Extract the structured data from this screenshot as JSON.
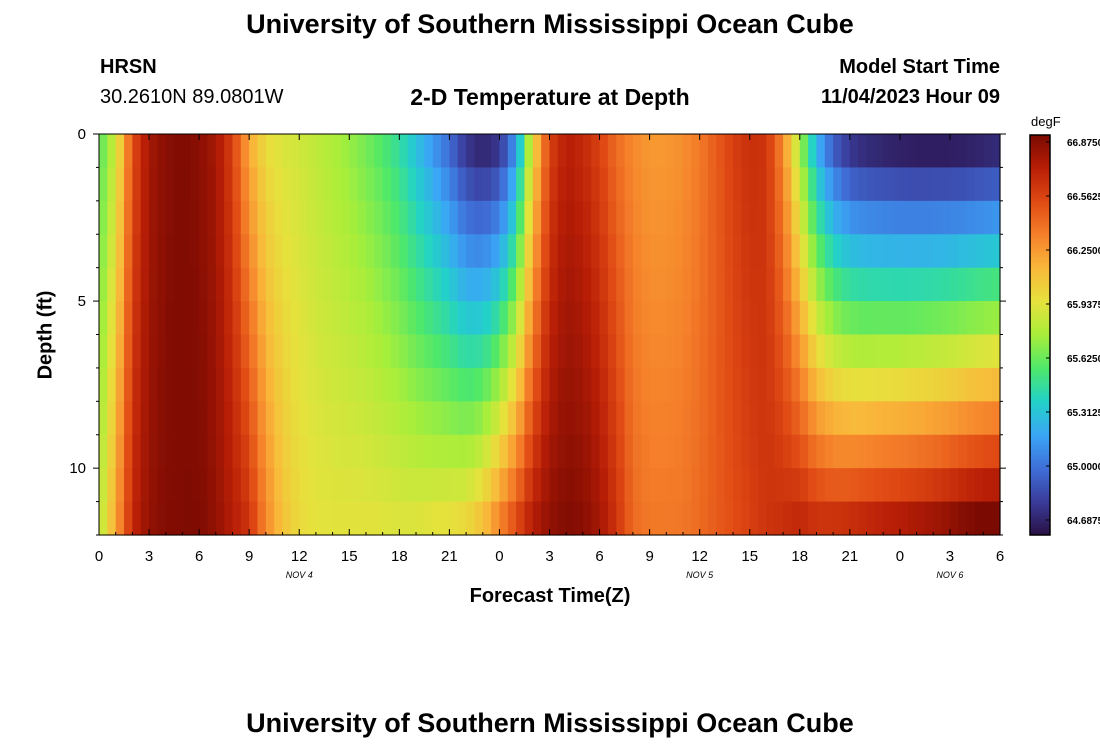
{
  "header": {
    "title": "University of Southern Mississippi Ocean Cube",
    "station": "HRSN",
    "coords": "30.2610N  89.0801W",
    "subtitle": "2-D Temperature at Depth",
    "model_label": "Model Start Time",
    "model_time": "11/04/2023 Hour 09"
  },
  "footer": {
    "title": "University of Southern Mississippi Ocean Cube"
  },
  "chart_data": {
    "type": "heatmap",
    "xlabel": "Forecast Time(Z)",
    "ylabel": "Depth (ft)",
    "x_range_hours": [
      0,
      54
    ],
    "x_tick_labels": [
      "0",
      "3",
      "6",
      "9",
      "12",
      "15",
      "18",
      "21",
      "0",
      "3",
      "6",
      "9",
      "12",
      "15",
      "18",
      "21",
      "0",
      "3",
      "6"
    ],
    "day_labels": [
      {
        "label": "NOV 4",
        "hour": 12
      },
      {
        "label": "NOV 5",
        "hour": 36
      },
      {
        "label": "NOV 6",
        "hour": 51
      }
    ],
    "y_range_ft": [
      0,
      12
    ],
    "y_tick_labels": [
      "0",
      "5",
      "10"
    ],
    "y_tick_values": [
      0,
      5,
      10
    ],
    "colorbar": {
      "unit": "degF",
      "tick_labels": [
        "66.8750",
        "66.5625",
        "66.2500",
        "65.9375",
        "65.6250",
        "65.3125",
        "65.0000",
        "64.6875"
      ],
      "range": [
        64.6875,
        66.875
      ],
      "colors": [
        "#2a1045",
        "#3a3c9a",
        "#3f6fd8",
        "#3aa6f5",
        "#22d2c8",
        "#4ee86a",
        "#a8ee3a",
        "#e6e23c",
        "#f9b83a",
        "#f5802a",
        "#e04a14",
        "#b81e06",
        "#7a0a02"
      ]
    },
    "depth_layers_ft": [
      0.5,
      1.5,
      2.5,
      3.5,
      4.5,
      5.5,
      6.5,
      7.5,
      8.5,
      9.5,
      10.5,
      11.5
    ],
    "series": [
      {
        "hour": 0,
        "surface": 65.6,
        "bottom": 65.8
      },
      {
        "hour": 1,
        "surface": 65.9,
        "bottom": 66.2
      },
      {
        "hour": 2,
        "surface": 66.5,
        "bottom": 66.65
      },
      {
        "hour": 3,
        "surface": 66.75,
        "bottom": 66.8
      },
      {
        "hour": 4,
        "surface": 66.83,
        "bottom": 66.85
      },
      {
        "hour": 5,
        "surface": 66.86,
        "bottom": 66.86
      },
      {
        "hour": 6,
        "surface": 66.83,
        "bottom": 66.86
      },
      {
        "hour": 7,
        "surface": 66.75,
        "bottom": 66.8
      },
      {
        "hour": 8,
        "surface": 66.55,
        "bottom": 66.7
      },
      {
        "hour": 9,
        "surface": 66.2,
        "bottom": 66.6
      },
      {
        "hour": 10,
        "surface": 66.0,
        "bottom": 66.3
      },
      {
        "hour": 11,
        "surface": 65.93,
        "bottom": 66.1
      },
      {
        "hour": 12,
        "surface": 65.9,
        "bottom": 66.0
      },
      {
        "hour": 13,
        "surface": 65.85,
        "bottom": 65.96
      },
      {
        "hour": 14,
        "surface": 65.8,
        "bottom": 65.95
      },
      {
        "hour": 15,
        "surface": 65.75,
        "bottom": 65.95
      },
      {
        "hour": 16,
        "surface": 65.68,
        "bottom": 65.95
      },
      {
        "hour": 17,
        "surface": 65.6,
        "bottom": 65.94
      },
      {
        "hour": 18,
        "surface": 65.5,
        "bottom": 65.93
      },
      {
        "hour": 19,
        "surface": 65.35,
        "bottom": 65.93
      },
      {
        "hour": 20,
        "surface": 65.2,
        "bottom": 65.95
      },
      {
        "hour": 21,
        "surface": 65.05,
        "bottom": 65.97
      },
      {
        "hour": 22,
        "surface": 64.85,
        "bottom": 66.0
      },
      {
        "hour": 23,
        "surface": 64.78,
        "bottom": 66.1
      },
      {
        "hour": 24,
        "surface": 64.85,
        "bottom": 66.3
      },
      {
        "hour": 25,
        "surface": 65.2,
        "bottom": 66.5
      },
      {
        "hour": 26,
        "surface": 66.0,
        "bottom": 66.7
      },
      {
        "hour": 27,
        "surface": 66.55,
        "bottom": 66.8
      },
      {
        "hour": 28,
        "surface": 66.7,
        "bottom": 66.85
      },
      {
        "hour": 29,
        "surface": 66.65,
        "bottom": 66.83
      },
      {
        "hour": 30,
        "surface": 66.55,
        "bottom": 66.75
      },
      {
        "hour": 31,
        "surface": 66.4,
        "bottom": 66.6
      },
      {
        "hour": 32,
        "surface": 66.3,
        "bottom": 66.4
      },
      {
        "hour": 33,
        "surface": 66.25,
        "bottom": 66.35
      },
      {
        "hour": 34,
        "surface": 66.25,
        "bottom": 66.35
      },
      {
        "hour": 35,
        "surface": 66.28,
        "bottom": 66.36
      },
      {
        "hour": 36,
        "surface": 66.35,
        "bottom": 66.4
      },
      {
        "hour": 37,
        "surface": 66.45,
        "bottom": 66.45
      },
      {
        "hour": 38,
        "surface": 66.55,
        "bottom": 66.5
      },
      {
        "hour": 39,
        "surface": 66.62,
        "bottom": 66.55
      },
      {
        "hour": 40,
        "surface": 66.6,
        "bottom": 66.6
      },
      {
        "hour": 41,
        "surface": 66.3,
        "bottom": 66.62
      },
      {
        "hour": 42,
        "surface": 65.8,
        "bottom": 66.65
      },
      {
        "hour": 43,
        "surface": 65.3,
        "bottom": 66.6
      },
      {
        "hour": 44,
        "surface": 65.0,
        "bottom": 66.6
      },
      {
        "hour": 45,
        "surface": 64.85,
        "bottom": 66.62
      },
      {
        "hour": 46,
        "surface": 64.8,
        "bottom": 66.65
      },
      {
        "hour": 47,
        "surface": 64.78,
        "bottom": 66.68
      },
      {
        "hour": 48,
        "surface": 64.76,
        "bottom": 66.7
      },
      {
        "hour": 49,
        "surface": 64.75,
        "bottom": 66.73
      },
      {
        "hour": 50,
        "surface": 64.75,
        "bottom": 66.76
      },
      {
        "hour": 51,
        "surface": 64.75,
        "bottom": 66.8
      },
      {
        "hour": 52,
        "surface": 64.76,
        "bottom": 66.85
      },
      {
        "hour": 53,
        "surface": 64.78,
        "bottom": 66.88
      },
      {
        "hour": 54,
        "surface": 64.8,
        "bottom": 66.9
      }
    ],
    "grid": false
  }
}
